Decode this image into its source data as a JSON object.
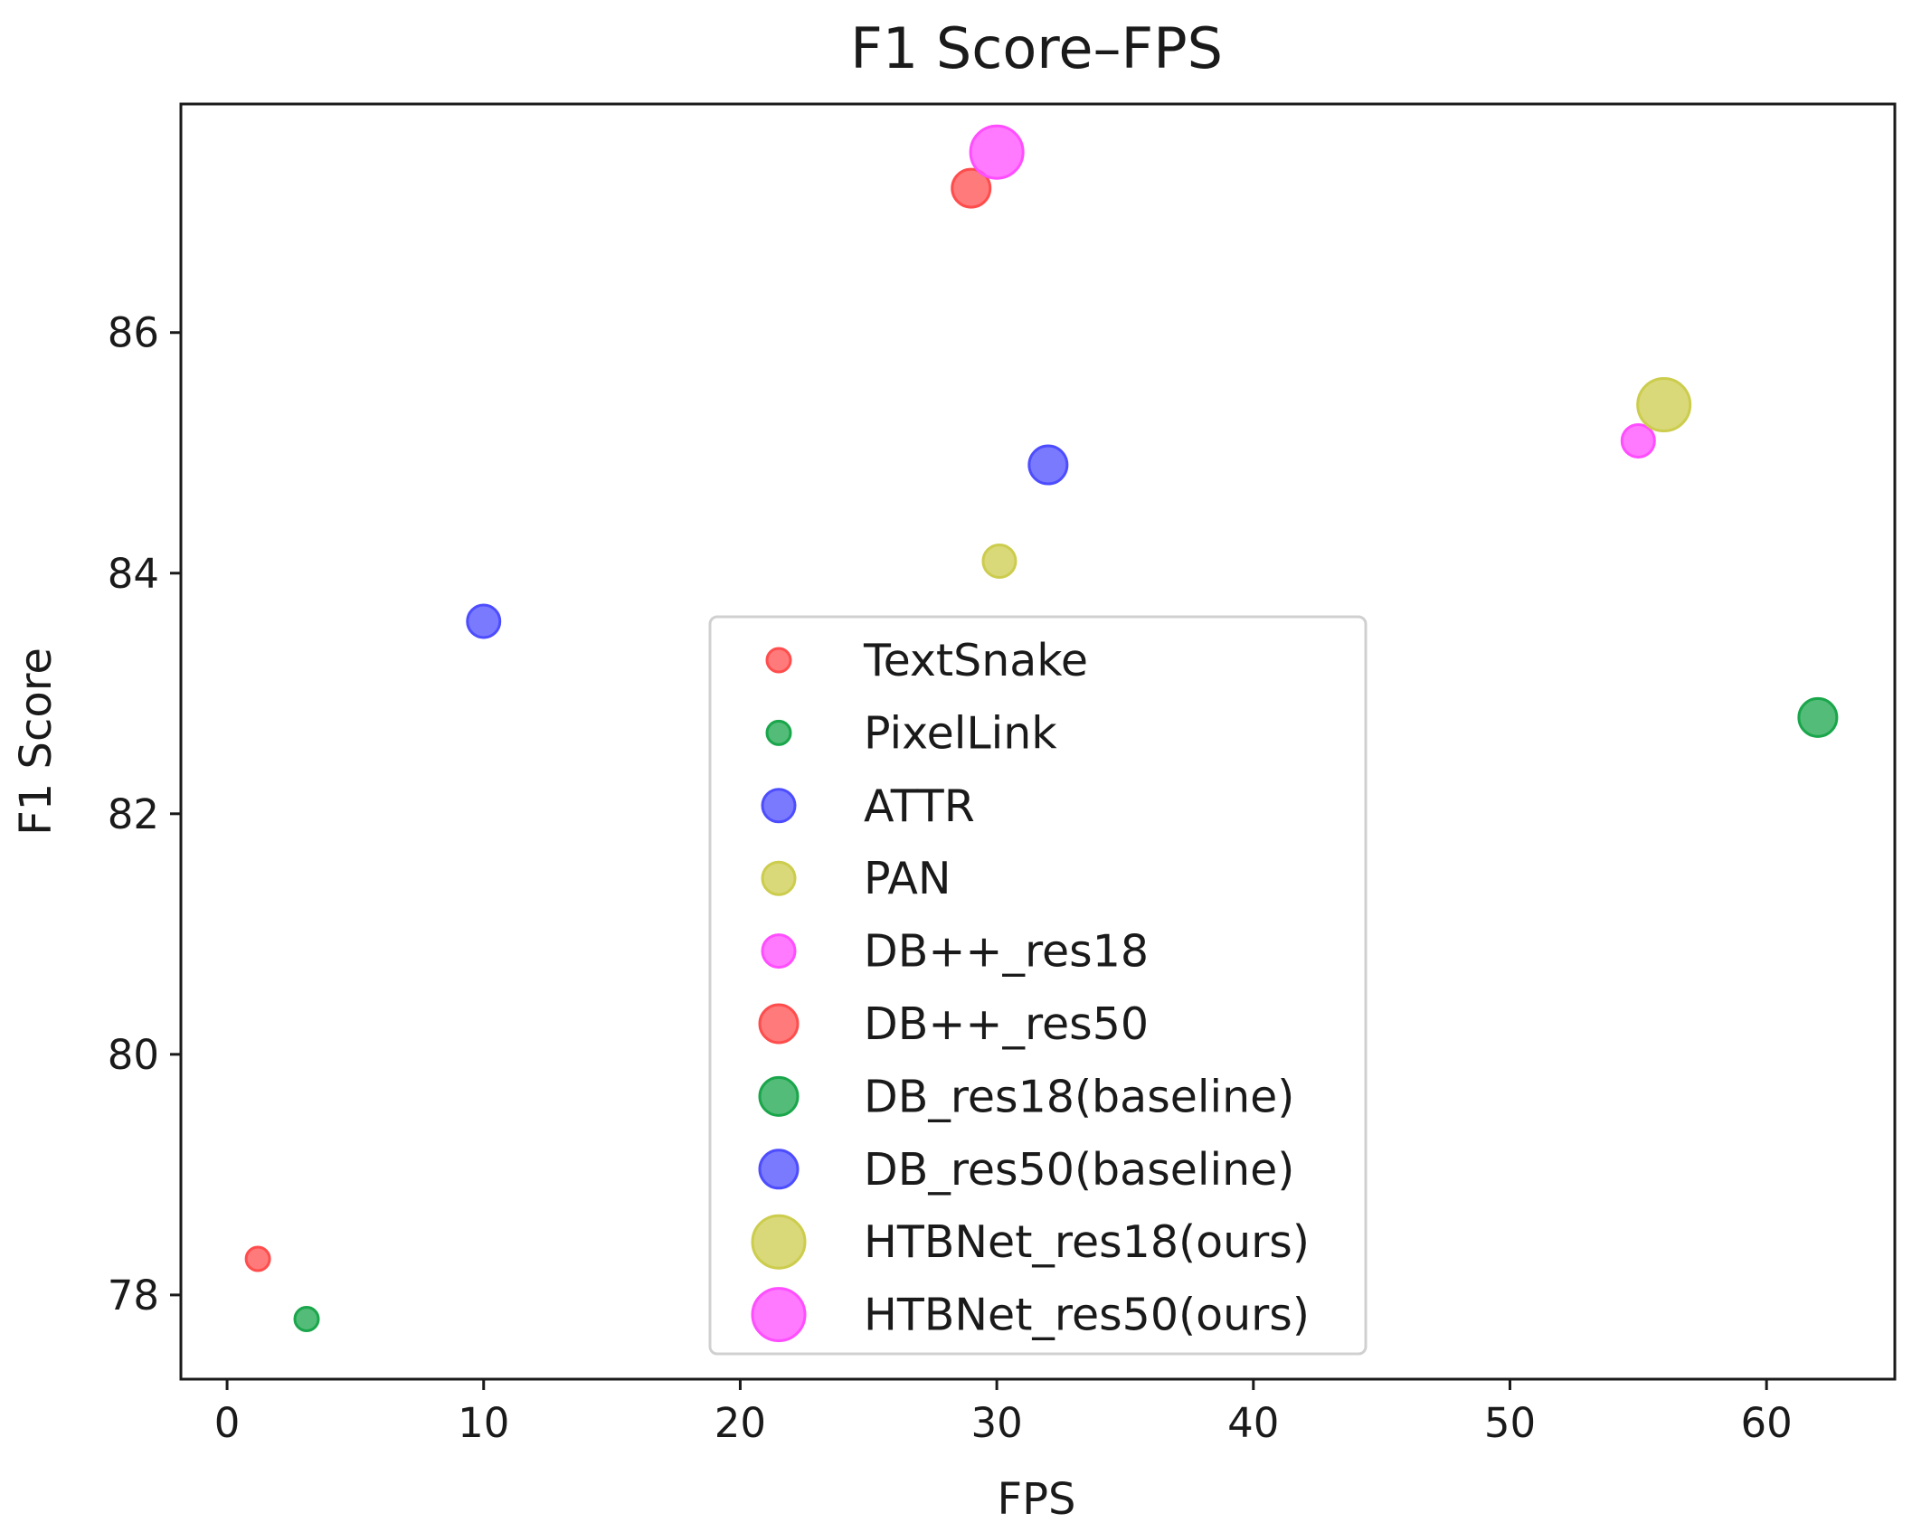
{
  "chart_data": {
    "type": "scatter",
    "title": "F1 Score–FPS",
    "xlabel": "FPS",
    "ylabel": "F1 Score",
    "xlim": [
      -1.8,
      65
    ],
    "ylim": [
      77.3,
      87.9
    ],
    "xticks": [
      0,
      10,
      20,
      30,
      40,
      50,
      60
    ],
    "yticks": [
      78,
      80,
      82,
      84,
      86
    ],
    "grid": false,
    "legend_position": "lower-center",
    "series": [
      {
        "name": "TextSnake",
        "color": "#ff4d4d",
        "size": 1,
        "points": [
          {
            "x": 1.2,
            "y": 78.3
          }
        ]
      },
      {
        "name": "PixelLink",
        "color": "#1aa64b",
        "size": 1,
        "points": [
          {
            "x": 3.1,
            "y": 77.8
          }
        ]
      },
      {
        "name": "ATTR",
        "color": "#4d4dff",
        "size": 2,
        "points": [
          {
            "x": 10.0,
            "y": 83.6
          }
        ]
      },
      {
        "name": "PAN",
        "color": "#cccc4d",
        "size": 2,
        "points": [
          {
            "x": 30.1,
            "y": 84.1
          }
        ]
      },
      {
        "name": "DB++_res18",
        "color": "#ff4dff",
        "size": 2,
        "points": [
          {
            "x": 55.0,
            "y": 85.1
          }
        ]
      },
      {
        "name": "DB++_res50",
        "color": "#ff4d4d",
        "size": 3,
        "points": [
          {
            "x": 29.0,
            "y": 87.2
          }
        ]
      },
      {
        "name": "DB_res18(baseline)",
        "color": "#1aa64b",
        "size": 3,
        "points": [
          {
            "x": 62.0,
            "y": 82.8
          }
        ]
      },
      {
        "name": "DB_res50(baseline)",
        "color": "#4d4dff",
        "size": 3,
        "points": [
          {
            "x": 32.0,
            "y": 84.9
          }
        ]
      },
      {
        "name": "HTBNet_res18(ours)",
        "color": "#cccc4d",
        "size": 4,
        "points": [
          {
            "x": 56.0,
            "y": 85.4
          }
        ]
      },
      {
        "name": "HTBNet_res50(ours)",
        "color": "#ff4dff",
        "size": 4,
        "points": [
          {
            "x": 30.0,
            "y": 87.5
          }
        ]
      }
    ]
  }
}
